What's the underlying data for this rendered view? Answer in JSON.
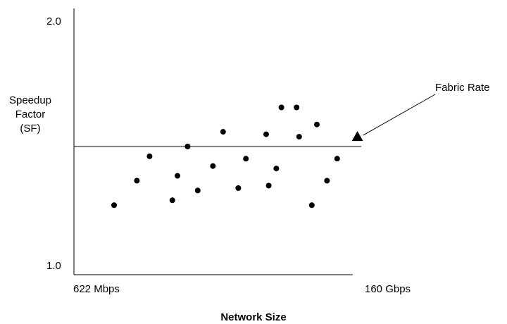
{
  "chart_data": {
    "type": "scatter",
    "title": "",
    "ylabel_lines": [
      "Speedup",
      "Factor",
      "(SF)"
    ],
    "xlabel": "Network Size",
    "x_tick_labels": [
      "622 Mbps",
      "160 Gbps"
    ],
    "y_tick_labels": [
      "2.0",
      "1.0"
    ],
    "ylim": [
      1.0,
      2.0
    ],
    "xlim": [
      0,
      1
    ],
    "grid": false,
    "reference_line": {
      "label": "Fabric Rate",
      "y": 1.49
    },
    "fabric_rate_marker": {
      "x": 1.06,
      "y": 1.53
    },
    "points": [
      {
        "x": 0.1,
        "y": 1.25
      },
      {
        "x": 0.19,
        "y": 1.35
      },
      {
        "x": 0.24,
        "y": 1.45
      },
      {
        "x": 0.33,
        "y": 1.27
      },
      {
        "x": 0.35,
        "y": 1.37
      },
      {
        "x": 0.39,
        "y": 1.49
      },
      {
        "x": 0.43,
        "y": 1.31
      },
      {
        "x": 0.49,
        "y": 1.41
      },
      {
        "x": 0.53,
        "y": 1.55
      },
      {
        "x": 0.59,
        "y": 1.32
      },
      {
        "x": 0.62,
        "y": 1.44
      },
      {
        "x": 0.7,
        "y": 1.54
      },
      {
        "x": 0.71,
        "y": 1.33
      },
      {
        "x": 0.74,
        "y": 1.4
      },
      {
        "x": 0.76,
        "y": 1.65
      },
      {
        "x": 0.82,
        "y": 1.65
      },
      {
        "x": 0.83,
        "y": 1.53
      },
      {
        "x": 0.88,
        "y": 1.25
      },
      {
        "x": 0.9,
        "y": 1.58
      },
      {
        "x": 0.94,
        "y": 1.35
      },
      {
        "x": 0.98,
        "y": 1.44
      }
    ]
  }
}
